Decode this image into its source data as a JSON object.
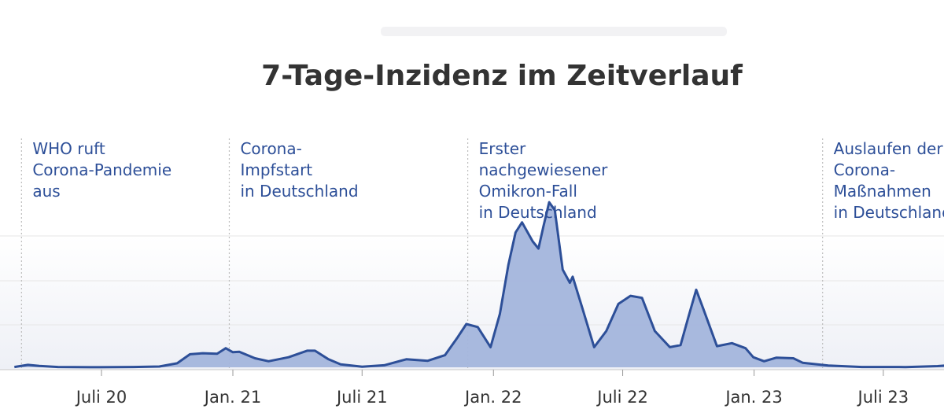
{
  "chart_data": {
    "type": "area",
    "title": "7-Tage-Inzidenz im Zeitverlauf",
    "xlabel": "",
    "ylabel": "",
    "x_ticks": [
      "Juli 20",
      "Jan. 21",
      "Juli 21",
      "Jan. 22",
      "Juli 22",
      "Jan. 23",
      "Juli 23"
    ],
    "grid": true,
    "colors": {
      "line": "#2d4f98",
      "fill": "#a3b5dc",
      "title": "#333333",
      "annotation": "#2d4f98",
      "tick": "#333333",
      "grid": "#e6e6e6",
      "marker": "#bdbdbd"
    },
    "annotations": [
      {
        "x": "2020-03-11",
        "lines": [
          "WHO ruft",
          "Corona-Pandemie",
          "aus"
        ]
      },
      {
        "x": "2020-12-27",
        "lines": [
          "Corona-",
          "Impfstart",
          "in Deutschland"
        ]
      },
      {
        "x": "2021-11-26",
        "lines": [
          "Erster",
          "nachgewiesener",
          "Omikron-Fall",
          "in Deutschland"
        ]
      },
      {
        "x": "2023-04-07",
        "lines": [
          "Auslaufen der",
          "Corona-",
          "Maßnahmen",
          "in Deutschland"
        ]
      }
    ],
    "series": [
      {
        "points": [
          [
            "2020-03-01",
            3
          ],
          [
            "2020-03-20",
            24
          ],
          [
            "2020-04-05",
            14
          ],
          [
            "2020-05-01",
            3
          ],
          [
            "2020-06-15",
            1
          ],
          [
            "2020-08-15",
            3
          ],
          [
            "2020-09-20",
            8
          ],
          [
            "2020-10-15",
            40
          ],
          [
            "2020-11-02",
            130
          ],
          [
            "2020-11-20",
            140
          ],
          [
            "2020-12-10",
            135
          ],
          [
            "2020-12-22",
            190
          ],
          [
            "2021-01-01",
            150
          ],
          [
            "2021-01-10",
            155
          ],
          [
            "2021-02-01",
            90
          ],
          [
            "2021-02-20",
            60
          ],
          [
            "2021-03-20",
            100
          ],
          [
            "2021-04-15",
            165
          ],
          [
            "2021-04-26",
            165
          ],
          [
            "2021-05-15",
            80
          ],
          [
            "2021-06-01",
            30
          ],
          [
            "2021-07-01",
            6
          ],
          [
            "2021-08-01",
            20
          ],
          [
            "2021-09-01",
            80
          ],
          [
            "2021-10-01",
            65
          ],
          [
            "2021-10-25",
            120
          ],
          [
            "2021-11-12",
            300
          ],
          [
            "2021-11-24",
            430
          ],
          [
            "2021-12-10",
            400
          ],
          [
            "2021-12-28",
            200
          ],
          [
            "2022-01-10",
            530
          ],
          [
            "2022-01-22",
            1020
          ],
          [
            "2022-02-01",
            1340
          ],
          [
            "2022-02-10",
            1440
          ],
          [
            "2022-02-25",
            1250
          ],
          [
            "2022-03-05",
            1180
          ],
          [
            "2022-03-12",
            1400
          ],
          [
            "2022-03-20",
            1640
          ],
          [
            "2022-03-28",
            1560
          ],
          [
            "2022-04-08",
            970
          ],
          [
            "2022-04-18",
            840
          ],
          [
            "2022-04-22",
            900
          ],
          [
            "2022-05-05",
            600
          ],
          [
            "2022-05-22",
            200
          ],
          [
            "2022-06-08",
            360
          ],
          [
            "2022-06-25",
            630
          ],
          [
            "2022-07-12",
            710
          ],
          [
            "2022-07-28",
            690
          ],
          [
            "2022-08-15",
            360
          ],
          [
            "2022-09-05",
            200
          ],
          [
            "2022-09-20",
            220
          ],
          [
            "2022-10-01",
            500
          ],
          [
            "2022-10-12",
            770
          ],
          [
            "2022-10-22",
            580
          ],
          [
            "2022-11-10",
            210
          ],
          [
            "2022-12-01",
            240
          ],
          [
            "2022-12-20",
            190
          ],
          [
            "2022-12-31",
            100
          ],
          [
            "2023-01-15",
            60
          ],
          [
            "2023-02-01",
            95
          ],
          [
            "2023-02-25",
            90
          ],
          [
            "2023-03-10",
            45
          ],
          [
            "2023-04-15",
            18
          ],
          [
            "2023-06-01",
            3
          ],
          [
            "2023-08-01",
            2
          ],
          [
            "2023-09-15",
            12
          ],
          [
            "2023-10-10",
            25
          ]
        ]
      }
    ]
  }
}
